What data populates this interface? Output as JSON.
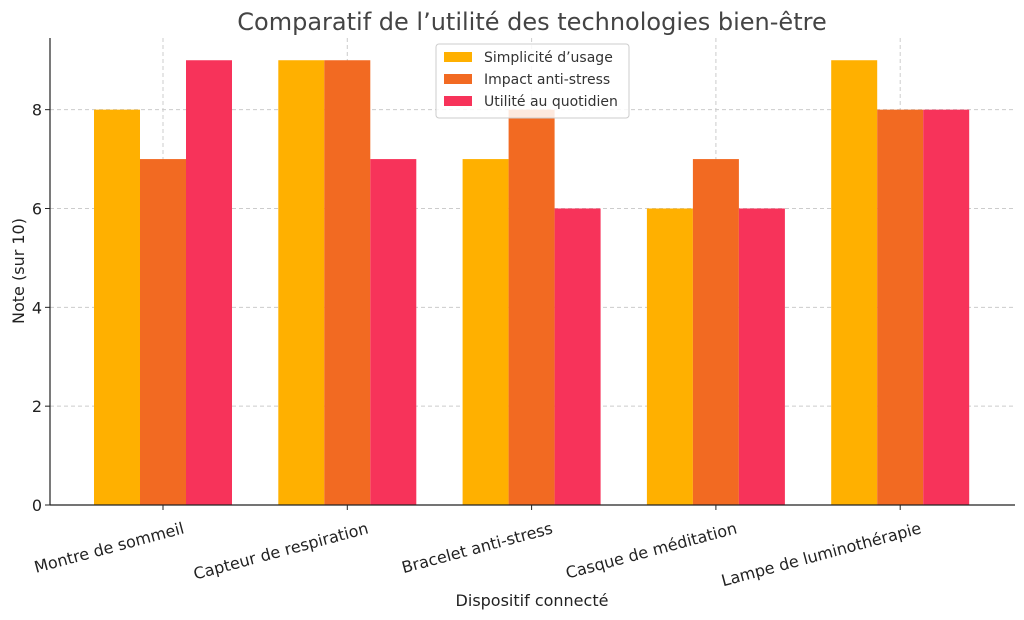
{
  "chart_data": {
    "type": "bar",
    "title": "Comparatif de l’utilité des technologies bien-être",
    "xlabel": "Dispositif connecté",
    "ylabel": "Note (sur 10)",
    "ylim": [
      0,
      9.45
    ],
    "yticks": [
      0,
      2,
      4,
      6,
      8
    ],
    "grid": true,
    "legend_position": "top-center",
    "categories": [
      "Montre de sommeil",
      "Capteur de respiration",
      "Bracelet anti-stress",
      "Casque de méditation",
      "Lampe de luminothérapie"
    ],
    "series": [
      {
        "name": "Simplicité d’usage",
        "color": "#FFB000",
        "values": [
          8,
          9,
          7,
          6,
          9
        ]
      },
      {
        "name": "Impact anti-stress",
        "color": "#F26A22",
        "values": [
          7,
          9,
          8,
          7,
          8
        ]
      },
      {
        "name": "Utilité au quotidien",
        "color": "#F7335A",
        "values": [
          9,
          7,
          6,
          6,
          8
        ]
      }
    ]
  }
}
